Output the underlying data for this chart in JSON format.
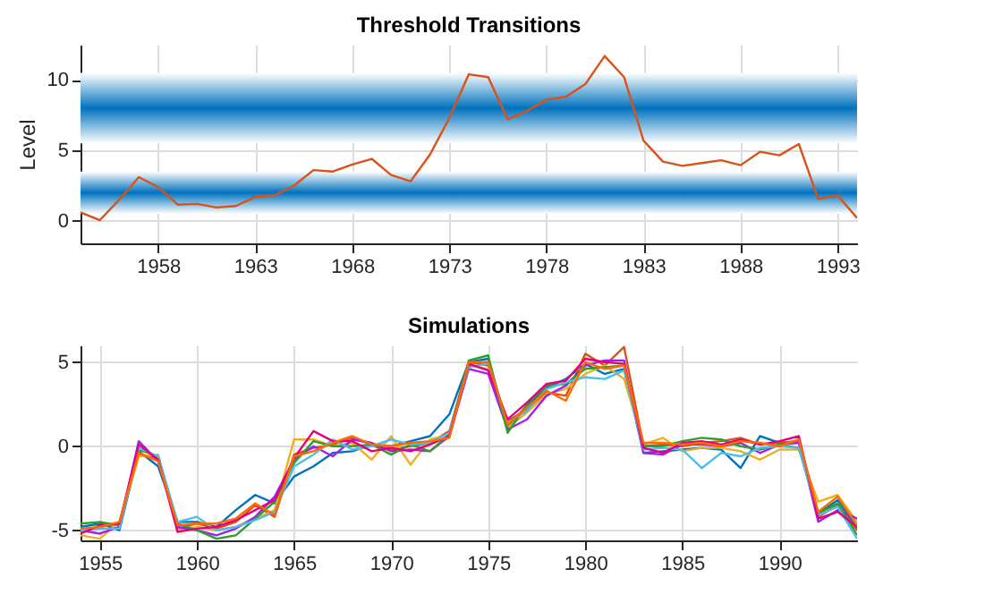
{
  "chart_data": [
    {
      "type": "line",
      "title": "Threshold Transitions",
      "ylabel": "Level",
      "x": [
        1954,
        1955,
        1956,
        1957,
        1958,
        1959,
        1960,
        1961,
        1962,
        1963,
        1964,
        1965,
        1966,
        1967,
        1968,
        1969,
        1970,
        1971,
        1972,
        1973,
        1974,
        1975,
        1976,
        1977,
        1978,
        1979,
        1980,
        1981,
        1982,
        1983,
        1984,
        1985,
        1986,
        1987,
        1988,
        1989,
        1990,
        1991,
        1992,
        1993,
        1994
      ],
      "series": [
        {
          "color": "#d95319",
          "values": [
            0.6,
            0.05,
            1.5,
            3.1,
            2.4,
            1.15,
            1.2,
            0.95,
            1.05,
            1.7,
            1.8,
            2.5,
            3.6,
            3.5,
            4.0,
            4.4,
            3.25,
            2.8,
            4.7,
            7.3,
            10.4,
            10.2,
            7.2,
            7.8,
            8.6,
            8.8,
            9.7,
            11.7,
            10.2,
            5.7,
            4.2,
            3.9,
            4.1,
            4.3,
            3.95,
            4.9,
            4.65,
            5.45,
            1.55,
            1.8,
            0.2
          ]
        }
      ],
      "bands": [
        {
          "axis": "y",
          "from": 0.5,
          "to": 3.5,
          "color": "#0072bd"
        },
        {
          "axis": "y",
          "from": 5.5,
          "to": 10.5,
          "color": "#0072bd"
        }
      ],
      "xlim": [
        1954,
        1994
      ],
      "xticks": [
        1958,
        1963,
        1968,
        1973,
        1978,
        1983,
        1988,
        1993
      ],
      "ylim": [
        -1.6,
        12.5
      ],
      "yticks": [
        0,
        5,
        10
      ],
      "grid": true,
      "legend": false,
      "line_style": "solid",
      "marker": "none"
    },
    {
      "type": "line",
      "title": "Simulations",
      "x": [
        1954,
        1955,
        1956,
        1957,
        1958,
        1959,
        1960,
        1961,
        1962,
        1963,
        1964,
        1965,
        1966,
        1967,
        1968,
        1969,
        1970,
        1971,
        1972,
        1973,
        1974,
        1975,
        1976,
        1977,
        1978,
        1979,
        1980,
        1981,
        1982,
        1983,
        1984,
        1985,
        1986,
        1987,
        1988,
        1989,
        1990,
        1991,
        1992,
        1993,
        1994
      ],
      "series": [
        {
          "color": "#0072bd",
          "values": [
            -4.8,
            -4.6,
            -5.0,
            -0.3,
            -1.2,
            -4.5,
            -4.5,
            -4.8,
            -3.8,
            -2.9,
            -3.4,
            -1.8,
            -1.2,
            -0.4,
            -0.3,
            0.1,
            0.0,
            0.3,
            0.6,
            1.9,
            5.0,
            5.2,
            1.2,
            2.4,
            3.5,
            4.0,
            4.9,
            4.3,
            4.6,
            -0.4,
            -0.3,
            -0.2,
            -0.1,
            -0.2,
            -1.3,
            0.6,
            0.2,
            0.3,
            -4.0,
            -3.2,
            -4.9
          ]
        },
        {
          "color": "#d95319",
          "values": [
            -5.1,
            -4.8,
            -4.6,
            -0.5,
            -0.7,
            -4.9,
            -4.6,
            -4.9,
            -4.5,
            -3.5,
            -4.2,
            -0.5,
            -0.1,
            0.1,
            0.5,
            0.1,
            -0.2,
            0.0,
            0.2,
            0.9,
            5.0,
            4.8,
            1.5,
            2.2,
            3.2,
            3.0,
            5.5,
            4.8,
            5.9,
            0.0,
            0.1,
            0.0,
            0.2,
            0.3,
            0.5,
            0.1,
            0.2,
            0.3,
            -4.2,
            -3.5,
            -5.0
          ]
        },
        {
          "color": "#edb120",
          "values": [
            -5.3,
            -5.5,
            -4.5,
            -0.6,
            -0.5,
            -5.0,
            -4.8,
            -5.0,
            -4.8,
            -4.3,
            -3.8,
            0.4,
            0.4,
            0.0,
            0.2,
            -0.8,
            0.6,
            -1.1,
            0.4,
            0.7,
            4.8,
            4.6,
            1.1,
            2.0,
            3.1,
            3.4,
            4.3,
            4.8,
            4.0,
            0.1,
            0.5,
            -0.3,
            -0.1,
            -0.1,
            -0.3,
            -0.8,
            -0.2,
            -0.2,
            -3.3,
            -2.9,
            -4.5
          ]
        },
        {
          "color": "#a020f0",
          "values": [
            -5.0,
            -5.2,
            -4.8,
            0.3,
            -0.9,
            -4.8,
            -5.0,
            -5.3,
            -4.9,
            -4.2,
            -3.0,
            -0.8,
            0.0,
            -0.6,
            0.4,
            0.2,
            -0.3,
            -0.2,
            -0.3,
            0.6,
            4.6,
            4.3,
            1.0,
            1.6,
            3.0,
            3.6,
            4.8,
            5.1,
            5.1,
            -0.4,
            -0.5,
            0.1,
            0.1,
            0.0,
            0.2,
            -0.4,
            0.1,
            0.2,
            -4.5,
            -3.8,
            -4.3
          ]
        },
        {
          "color": "#2ca02c",
          "values": [
            -4.6,
            -4.5,
            -4.7,
            -0.2,
            -0.6,
            -4.6,
            -5.0,
            -5.5,
            -5.3,
            -4.3,
            -3.3,
            -1.0,
            0.3,
            0.0,
            0.0,
            0.1,
            -0.5,
            0.1,
            -0.3,
            0.7,
            5.1,
            5.4,
            0.8,
            2.5,
            3.6,
            3.7,
            4.6,
            4.7,
            4.8,
            0.0,
            0.0,
            0.3,
            0.5,
            0.4,
            0.0,
            -0.2,
            0.1,
            -0.1,
            -4.0,
            -3.4,
            -5.3
          ]
        },
        {
          "color": "#4dbeee",
          "values": [
            -5.0,
            -4.9,
            -4.9,
            -0.1,
            -0.6,
            -4.5,
            -4.2,
            -5.0,
            -4.8,
            -4.4,
            -3.9,
            -1.2,
            -0.5,
            0.4,
            -0.2,
            0.0,
            0.4,
            0.1,
            0.2,
            0.8,
            4.7,
            4.9,
            1.4,
            2.1,
            3.4,
            3.8,
            4.1,
            4.0,
            4.5,
            -0.2,
            -0.1,
            -0.2,
            -1.3,
            -0.4,
            -0.6,
            -0.1,
            0.0,
            -0.1,
            -4.1,
            -3.6,
            -5.5
          ]
        },
        {
          "color": "#e6007e",
          "values": [
            -5.2,
            -4.7,
            -4.6,
            0.1,
            -0.8,
            -5.1,
            -4.9,
            -4.8,
            -4.4,
            -3.8,
            -3.2,
            -0.7,
            0.9,
            0.3,
            0.3,
            -0.3,
            -0.1,
            -0.3,
            0.1,
            0.6,
            4.9,
            4.5,
            1.6,
            2.6,
            3.7,
            3.9,
            5.2,
            5.0,
            4.9,
            -0.1,
            -0.4,
            0.2,
            0.3,
            0.1,
            0.4,
            0.1,
            0.3,
            0.6,
            -4.3,
            -3.9,
            -4.8
          ]
        },
        {
          "color": "#ff6a00",
          "values": [
            -4.9,
            -4.8,
            -4.5,
            -0.4,
            -0.9,
            -4.7,
            -4.6,
            -4.6,
            -4.3,
            -3.4,
            -4.1,
            -0.6,
            -0.3,
            0.2,
            0.6,
            0.1,
            0.0,
            0.2,
            0.3,
            0.5,
            5.0,
            5.0,
            1.3,
            2.3,
            3.3,
            2.7,
            5.0,
            4.6,
            4.8,
            0.2,
            0.2,
            0.1,
            0.2,
            0.0,
            0.3,
            0.2,
            0.0,
            0.4,
            -3.9,
            -3.0,
            -4.7
          ]
        }
      ],
      "xlim": [
        1954,
        1994
      ],
      "xticks": [
        1955,
        1960,
        1965,
        1970,
        1975,
        1980,
        1985,
        1990
      ],
      "ylim": [
        -5.6,
        6.0
      ],
      "yticks": [
        -5,
        0,
        5
      ],
      "grid": true,
      "legend": false,
      "line_style": "solid",
      "marker": "none"
    }
  ]
}
